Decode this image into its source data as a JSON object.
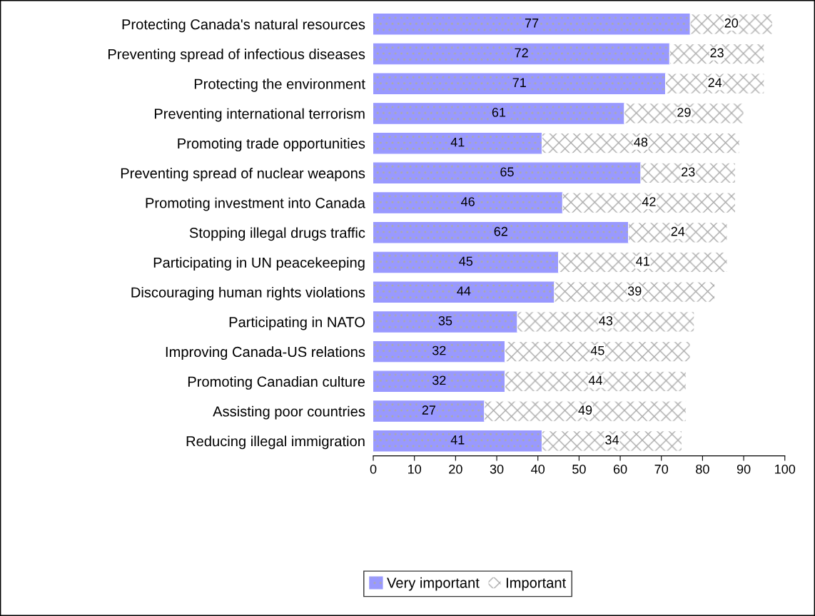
{
  "chart_data": {
    "type": "bar",
    "orientation": "horizontal",
    "stacked": true,
    "categories": [
      "Protecting Canada's natural resources",
      "Preventing spread of infectious diseases",
      "Protecting the environment",
      "Preventing international terrorism",
      "Promoting trade opportunities",
      "Preventing spread of nuclear weapons",
      "Promoting investment into Canada",
      "Stopping illegal drugs traffic",
      "Participating in UN peacekeeping",
      "Discouraging human rights violations",
      "Participating in NATO",
      "Improving Canada-US relations",
      "Promoting Canadian culture",
      "Assisting poor countries",
      "Reducing illegal immigration"
    ],
    "series": [
      {
        "name": "Very important",
        "color": "#9999ff",
        "values": [
          77,
          72,
          71,
          61,
          41,
          65,
          46,
          62,
          45,
          44,
          35,
          32,
          32,
          27,
          41
        ]
      },
      {
        "name": "Important",
        "color": "#ffffff",
        "values": [
          20,
          23,
          24,
          29,
          48,
          23,
          42,
          24,
          41,
          39,
          43,
          45,
          44,
          49,
          34
        ]
      }
    ],
    "xlim": [
      0,
      100
    ],
    "xticks": [
      0,
      10,
      20,
      30,
      40,
      50,
      60,
      70,
      80,
      90,
      100
    ],
    "data_labels": true,
    "grid": false,
    "legend": "bottom"
  }
}
